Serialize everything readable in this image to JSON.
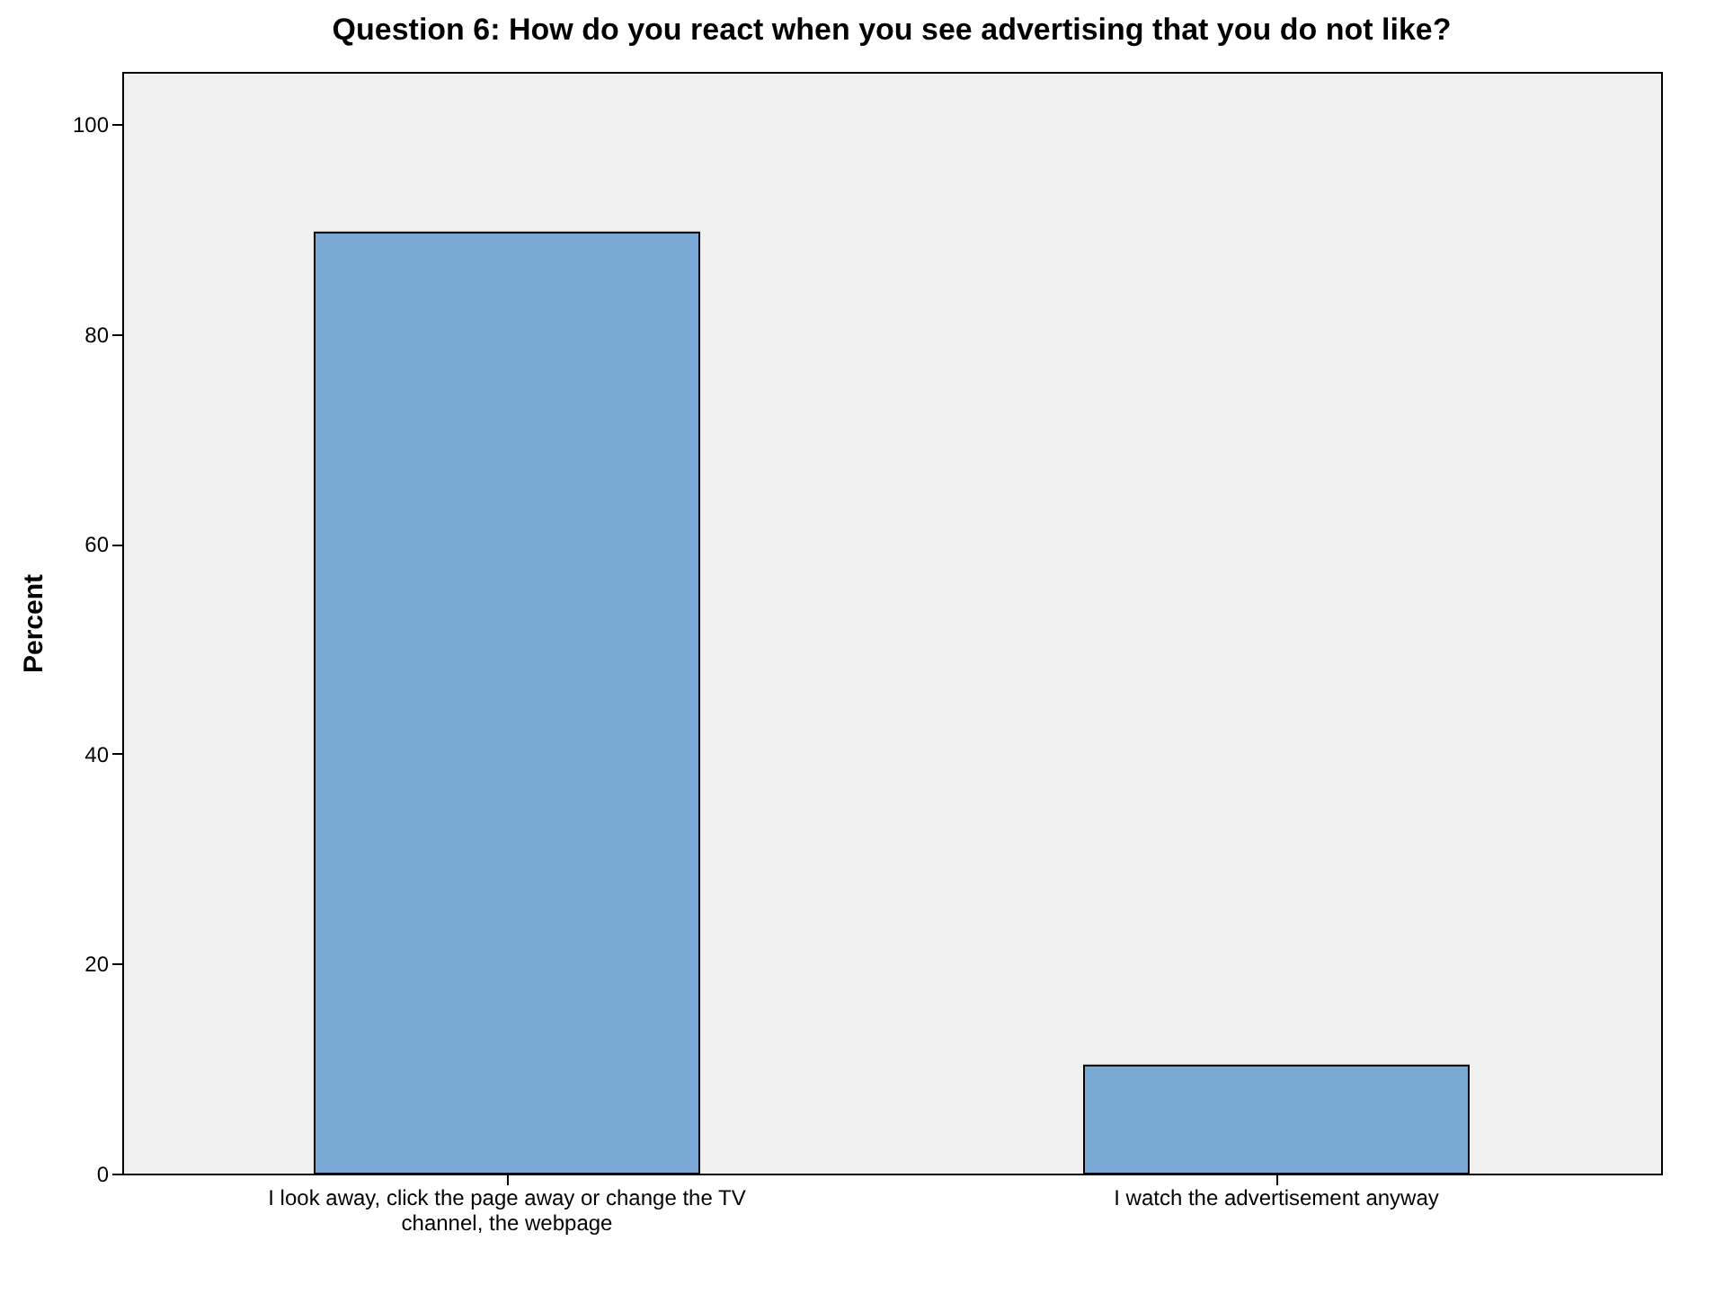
{
  "chart_data": {
    "type": "bar",
    "title": "Question 6: How do you react when you see advertising that you do not like?",
    "ylabel": "Percent",
    "categories": [
      "I look away, click the page away or change the TV channel, the webpage",
      "I watch the advertisement anyway"
    ],
    "values": [
      89.7,
      10.3
    ],
    "color": "#7ba9d6",
    "ylim": [
      0,
      105
    ],
    "yticks": [
      0,
      20,
      40,
      60,
      80,
      100
    ],
    "grid": false
  }
}
